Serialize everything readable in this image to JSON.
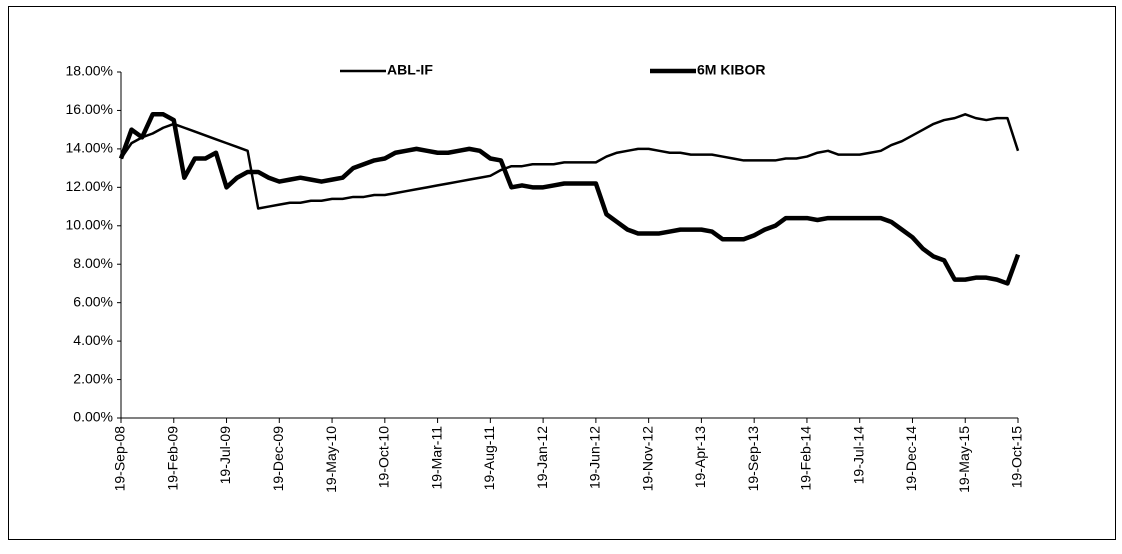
{
  "chart_data": {
    "type": "line",
    "categories": [
      "19-Sep-08",
      null,
      null,
      null,
      null,
      "19-Feb-09",
      null,
      null,
      null,
      null,
      "19-Jul-09",
      null,
      null,
      null,
      null,
      "19-Dec-09",
      null,
      null,
      null,
      null,
      "19-May-10",
      null,
      null,
      null,
      null,
      "19-Oct-10",
      null,
      null,
      null,
      null,
      "19-Mar-11",
      null,
      null,
      null,
      null,
      "19-Aug-11",
      null,
      null,
      null,
      null,
      "19-Jan-12",
      null,
      null,
      null,
      null,
      "19-Jun-12",
      null,
      null,
      null,
      null,
      "19-Nov-12",
      null,
      null,
      null,
      null,
      "19-Apr-13",
      null,
      null,
      null,
      null,
      "19-Sep-13",
      null,
      null,
      null,
      null,
      "19-Feb-14",
      null,
      null,
      null,
      null,
      "19-Jul-14",
      null,
      null,
      null,
      null,
      "19-Dec-14",
      null,
      null,
      null,
      null,
      "19-May-15",
      null,
      null,
      null,
      null,
      "19-Oct-15"
    ],
    "series": [
      {
        "name": "ABL-IF",
        "color": "#000000",
        "values": [
          13.5,
          14.3,
          14.6,
          14.8,
          15.1,
          15.3,
          15.1,
          14.9,
          14.7,
          14.5,
          14.3,
          14.1,
          13.9,
          10.9,
          11.0,
          11.1,
          11.2,
          11.2,
          11.3,
          11.3,
          11.4,
          11.4,
          11.5,
          11.5,
          11.6,
          11.6,
          11.7,
          11.8,
          11.9,
          12.0,
          12.1,
          12.2,
          12.3,
          12.4,
          12.5,
          12.6,
          12.9,
          13.1,
          13.1,
          13.2,
          13.2,
          13.2,
          13.3,
          13.3,
          13.3,
          13.3,
          13.6,
          13.8,
          13.9,
          14.0,
          14.0,
          13.9,
          13.8,
          13.8,
          13.7,
          13.7,
          13.7,
          13.6,
          13.5,
          13.4,
          13.4,
          13.4,
          13.4,
          13.5,
          13.5,
          13.6,
          13.8,
          13.9,
          13.7,
          13.7,
          13.7,
          13.8,
          13.9,
          14.2,
          14.4,
          14.7,
          15.0,
          15.3,
          15.5,
          15.6,
          15.8,
          15.6,
          15.5,
          15.6,
          15.6,
          13.9
        ]
      },
      {
        "name": "6M KIBOR",
        "color": "#000000",
        "values": [
          13.5,
          15.0,
          14.6,
          15.8,
          15.8,
          15.5,
          12.5,
          13.5,
          13.5,
          13.8,
          12.0,
          12.5,
          12.8,
          12.8,
          12.5,
          12.3,
          12.4,
          12.5,
          12.4,
          12.3,
          12.4,
          12.5,
          13.0,
          13.2,
          13.4,
          13.5,
          13.8,
          13.9,
          14.0,
          13.9,
          13.8,
          13.8,
          13.9,
          14.0,
          13.9,
          13.5,
          13.4,
          12.0,
          12.1,
          12.0,
          12.0,
          12.1,
          12.2,
          12.2,
          12.2,
          12.2,
          10.6,
          10.2,
          9.8,
          9.6,
          9.6,
          9.6,
          9.7,
          9.8,
          9.8,
          9.8,
          9.7,
          9.3,
          9.3,
          9.3,
          9.5,
          9.8,
          10.0,
          10.4,
          10.4,
          10.4,
          10.3,
          10.4,
          10.4,
          10.4,
          10.4,
          10.4,
          10.4,
          10.2,
          9.8,
          9.4,
          8.8,
          8.4,
          8.2,
          7.2,
          7.2,
          7.3,
          7.3,
          7.2,
          7.0,
          8.5
        ]
      }
    ],
    "ylim": [
      0,
      18
    ],
    "yticks": [
      {
        "value": 0,
        "label": "0.00%"
      },
      {
        "value": 2,
        "label": "2.00%"
      },
      {
        "value": 4,
        "label": "4.00%"
      },
      {
        "value": 6,
        "label": "6.00%"
      },
      {
        "value": 8,
        "label": "8.00%"
      },
      {
        "value": 10,
        "label": "10.00%"
      },
      {
        "value": 12,
        "label": "12.00%"
      },
      {
        "value": 14,
        "label": "14.00%"
      },
      {
        "value": 16,
        "label": "16.00%"
      },
      {
        "value": 18,
        "label": "18.00%"
      }
    ],
    "grid": false
  }
}
